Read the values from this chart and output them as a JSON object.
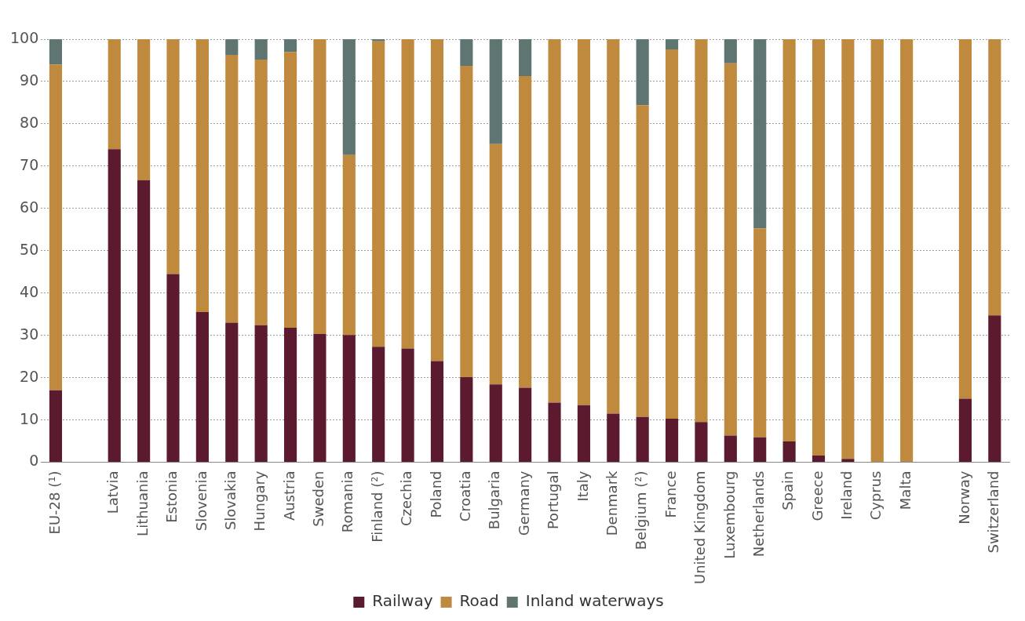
{
  "chart_data": {
    "type": "bar",
    "stacked": true,
    "categories": [
      "EU-28 (¹)",
      null,
      "Latvia",
      "Lithuania",
      "Estonia",
      "Slovenia",
      "Slovakia",
      "Hungary",
      "Austria",
      "Sweden",
      "Romania",
      "Finland (²)",
      "Czechia",
      "Poland",
      "Croatia",
      "Bulgaria",
      "Germany",
      "Portugal",
      "Italy",
      "Denmark",
      "Belgium (²)",
      "France",
      "United Kingdom",
      "Luxembourg",
      "Netherlands",
      "Spain",
      "Greece",
      "Ireland",
      "Cyprus",
      "Malta",
      null,
      "Norway",
      "Switzerland"
    ],
    "series": [
      {
        "name": "Railway",
        "color": "#5c1a2e",
        "values": [
          17,
          null,
          74,
          66.7,
          44.5,
          35.5,
          33,
          32.4,
          31.8,
          30.3,
          30.1,
          27.3,
          26.9,
          23.9,
          20.1,
          18.4,
          17.6,
          14.1,
          13.5,
          11.5,
          10.7,
          10.3,
          9.5,
          6.3,
          5.9,
          4.9,
          1.6,
          0.8,
          0,
          0,
          null,
          15,
          34.7
        ]
      },
      {
        "name": "Road",
        "color": "#c08a3e",
        "values": [
          77,
          null,
          26,
          33.3,
          55.5,
          64.5,
          63.3,
          62.8,
          65.2,
          69.7,
          42.5,
          72.2,
          73.1,
          76.1,
          73.6,
          56.8,
          73.7,
          85.9,
          86.5,
          88.5,
          73.7,
          87.3,
          90.5,
          88,
          49.4,
          95.1,
          98.4,
          99.2,
          100,
          100,
          null,
          85,
          65.3
        ]
      },
      {
        "name": "Inland waterways",
        "color": "#5f7571",
        "values": [
          6,
          null,
          0,
          0,
          0,
          0,
          3.7,
          4.8,
          3,
          0,
          27.4,
          0.5,
          0,
          0,
          6.3,
          24.8,
          8.7,
          0,
          0,
          0,
          15.6,
          2.4,
          0,
          5.7,
          44.7,
          0,
          0,
          0,
          0,
          0,
          null,
          0,
          0
        ]
      }
    ],
    "ylim": [
      0,
      100
    ],
    "yticks": [
      0,
      10,
      20,
      30,
      40,
      50,
      60,
      70,
      80,
      90,
      100
    ],
    "grid": "y",
    "legend": "bottom"
  }
}
